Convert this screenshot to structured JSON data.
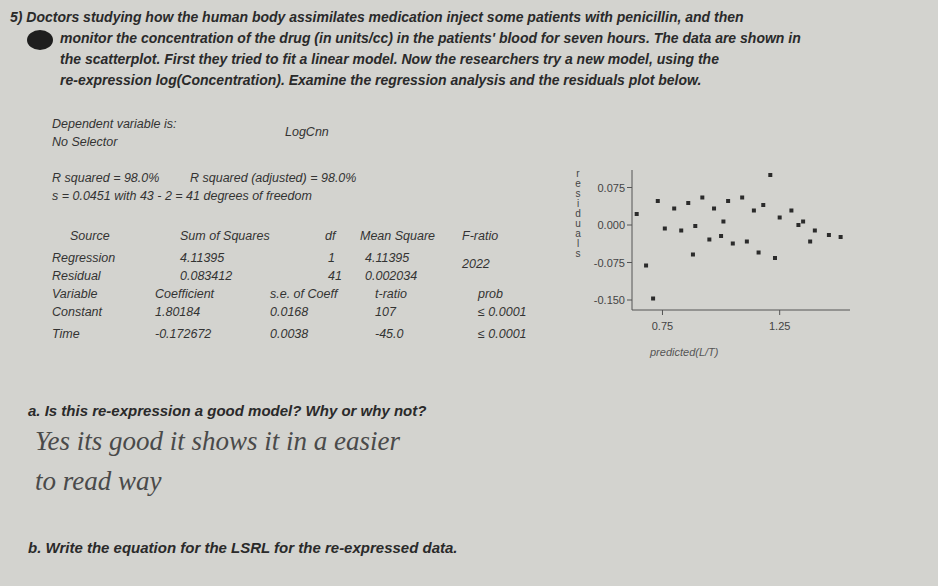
{
  "question": {
    "lines": [
      "5) Doctors studying how the human body assimilates medication inject some patients with penicillin, and then",
      "monitor the concentration of the drug (in units/cc) in the patients' blood for seven hours. The data are shown in",
      "the scatterplot. First they tried to fit a linear model. Now the researchers try a new model, using the",
      "re-expression log(Concentration). Examine the regression analysis and the residuals plot below."
    ]
  },
  "regression": {
    "dependent_label": "Dependent variable is:",
    "dependent": "LogCnn",
    "selector": "No Selector",
    "r_squared": "R squared = 98.0%",
    "r_squared_adj": "R squared (adjusted) = 98.0%",
    "s_line": "s = 0.0451 with 43 - 2 = 41 degrees of freedom",
    "anova": {
      "header": [
        "Source",
        "Sum of Squares",
        "df",
        "Mean Square",
        "F-ratio"
      ],
      "rows": [
        [
          "Regression",
          "4.11395",
          "1",
          "4.11395",
          "2022"
        ],
        [
          "Residual",
          "0.083412",
          "41",
          "0.002034"
        ]
      ]
    },
    "coefficients": {
      "header": [
        "Variable",
        "Coefficient",
        "s.e. of Coeff",
        "t-ratio",
        "prob"
      ],
      "rows": [
        [
          "Constant",
          "1.80184",
          "0.0168",
          "107",
          "≤ 0.0001"
        ],
        [
          "Time",
          "-0.172672",
          "0.0038",
          "-45.0",
          "≤ 0.0001"
        ]
      ]
    }
  },
  "chart_data": {
    "type": "scatter",
    "y_label": "residuals",
    "x_label": "predicted(L/T)",
    "x": [
      1.21,
      0.73,
      0.8,
      0.86,
      0.92,
      0.97,
      1.03,
      1.09,
      1.14,
      1.18,
      1.25,
      1.3,
      1.35,
      1.4,
      1.46,
      1.51,
      0.76,
      0.83,
      0.89,
      0.95,
      1.0,
      1.05,
      1.11,
      1.16,
      1.23,
      1.33,
      1.38,
      0.88,
      0.68,
      0.71,
      0.64,
      1.01
    ],
    "values": [
      0.1,
      0.048,
      0.033,
      0.044,
      0.055,
      0.033,
      0.048,
      0.055,
      0.029,
      0.04,
      0.015,
      0.029,
      0.007,
      -0.011,
      -0.02,
      -0.024,
      -0.007,
      -0.011,
      -0.002,
      -0.029,
      -0.022,
      -0.037,
      -0.033,
      -0.055,
      -0.066,
      0.0,
      -0.033,
      -0.059,
      -0.081,
      -0.147,
      0.022,
      0.007
    ],
    "xlim": [
      0.62,
      1.55
    ],
    "ylim": [
      -0.17,
      0.11
    ],
    "xticks": [
      0.75,
      1.25
    ],
    "yticks": [
      0.075,
      {
        "value": 0,
        "label": "0.000"
      },
      -0.075,
      {
        "value": -0.15,
        "label": "-0.150"
      }
    ],
    "color": "#2b2b2b",
    "marker": "square"
  },
  "part_a": {
    "prompt": "a.  Is this re-expression a good model?  Why or why not?",
    "answer": [
      "Yes its good it shows it in a easier",
      "to read way"
    ]
  },
  "part_b": {
    "prompt": "b.  Write the  equation for the LSRL for the re-expressed data."
  }
}
